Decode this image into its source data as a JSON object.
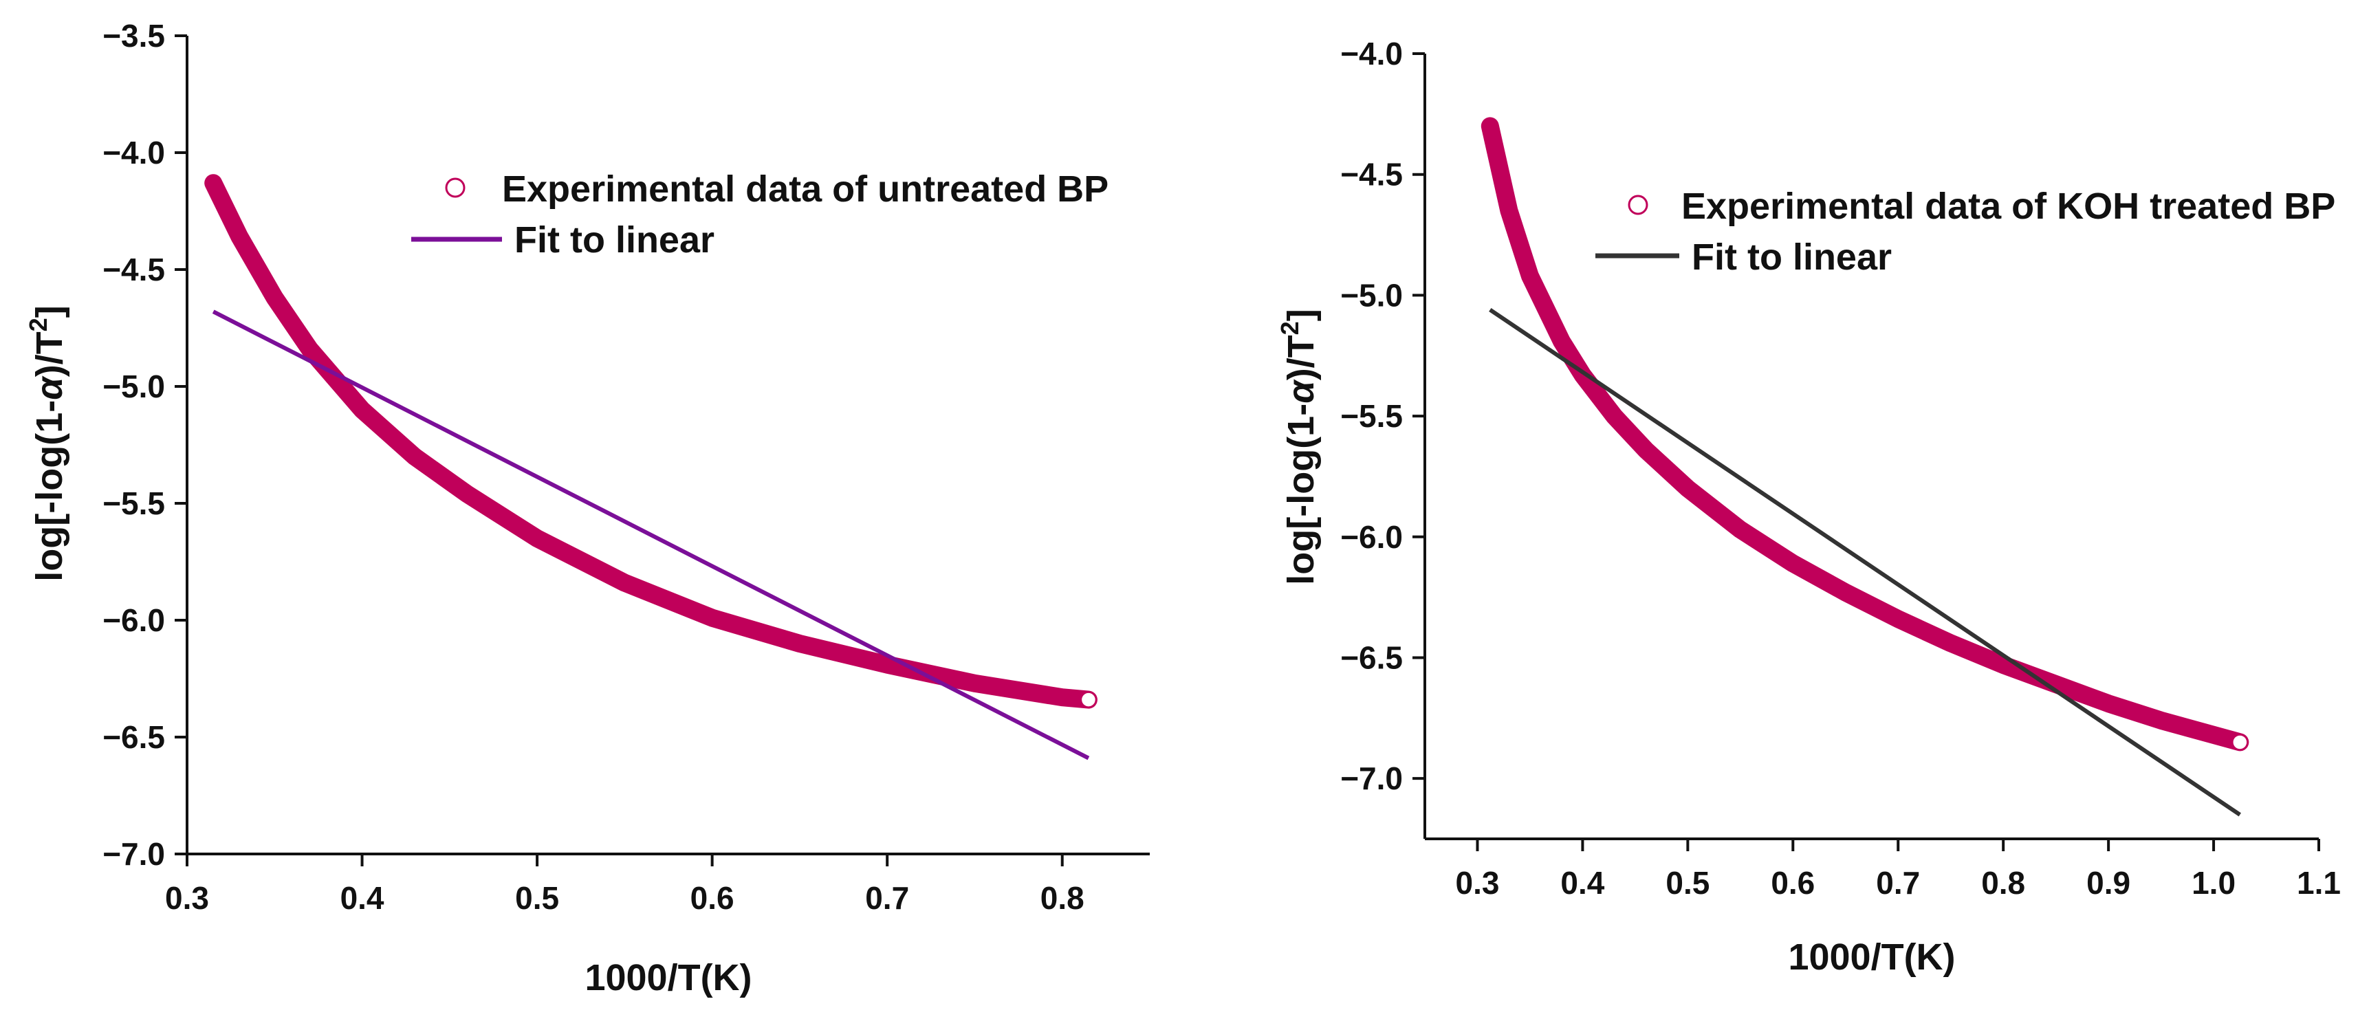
{
  "chart_data": [
    {
      "type": "line",
      "xlabel": "1000/T(K)",
      "ylabel": "log[-log(1-α)/T²]",
      "ylabel_parts": {
        "before": "log[-log(1-",
        "greek": "α",
        "mid": ")/T",
        "sup": "2",
        "after": "]"
      },
      "xlim": [
        0.3,
        0.85
      ],
      "ylim": [
        -7.0,
        -3.5
      ],
      "xticks": [
        0.3,
        0.4,
        0.5,
        0.6,
        0.7,
        0.8
      ],
      "yticks": [
        -7.0,
        -6.5,
        -6.0,
        -5.5,
        -5.0,
        -4.5,
        -4.0,
        -3.5
      ],
      "xtick_labels": [
        "0.3",
        "0.4",
        "0.5",
        "0.6",
        "0.7",
        "0.8"
      ],
      "ytick_labels": [
        "−7.0",
        "−6.5",
        "−6.0",
        "−5.5",
        "−5.0",
        "−4.5",
        "−4.0",
        "−3.5"
      ],
      "grid": false,
      "legend_position": "top-right",
      "series": [
        {
          "name": "Experimental data of untreated BP",
          "style": "thick-curve",
          "color": "#c0005a",
          "x": [
            0.315,
            0.33,
            0.35,
            0.37,
            0.4,
            0.43,
            0.46,
            0.5,
            0.55,
            0.6,
            0.65,
            0.7,
            0.75,
            0.8,
            0.815
          ],
          "y": [
            -4.13,
            -4.36,
            -4.62,
            -4.84,
            -5.1,
            -5.3,
            -5.46,
            -5.65,
            -5.84,
            -5.99,
            -6.1,
            -6.19,
            -6.27,
            -6.33,
            -6.34
          ]
        },
        {
          "name": "Fit to linear",
          "style": "line",
          "color": "#7b0f98",
          "x": [
            0.315,
            0.815
          ],
          "y": [
            -4.68,
            -6.59
          ]
        }
      ]
    },
    {
      "type": "line",
      "xlabel": "1000/T(K)",
      "ylabel": "log[-log(1-α)/T²]",
      "ylabel_parts": {
        "before": "log[-log(1-",
        "greek": "α",
        "mid": ")/T",
        "sup": "2",
        "after": "]"
      },
      "xlim": [
        0.25,
        1.1
      ],
      "ylim": [
        -7.25,
        -4.0
      ],
      "xticks": [
        0.3,
        0.4,
        0.5,
        0.6,
        0.7,
        0.8,
        0.9,
        1.0,
        1.1
      ],
      "yticks": [
        -7.0,
        -6.5,
        -6.0,
        -5.5,
        -5.0,
        -4.5,
        -4.0
      ],
      "xtick_labels": [
        "0.3",
        "0.4",
        "0.5",
        "0.6",
        "0.7",
        "0.8",
        "0.9",
        "1.0",
        "1.1"
      ],
      "ytick_labels": [
        "−7.0",
        "−6.5",
        "−6.0",
        "−5.5",
        "−5.0",
        "−4.5",
        "−4.0"
      ],
      "grid": false,
      "legend_position": "top-right",
      "series": [
        {
          "name": "Experimental data of KOH treated BP",
          "style": "thick-curve",
          "color": "#c0005a",
          "x": [
            0.312,
            0.33,
            0.35,
            0.38,
            0.4,
            0.43,
            0.46,
            0.5,
            0.55,
            0.6,
            0.65,
            0.7,
            0.75,
            0.8,
            0.85,
            0.9,
            0.95,
            1.0,
            1.025
          ],
          "y": [
            -4.3,
            -4.65,
            -4.92,
            -5.19,
            -5.33,
            -5.5,
            -5.64,
            -5.8,
            -5.97,
            -6.11,
            -6.23,
            -6.34,
            -6.44,
            -6.53,
            -6.61,
            -6.69,
            -6.76,
            -6.82,
            -6.85
          ]
        },
        {
          "name": "Fit to linear",
          "style": "line",
          "color": "#333333",
          "x": [
            0.312,
            1.025
          ],
          "y": [
            -5.06,
            -7.15
          ]
        }
      ]
    }
  ]
}
